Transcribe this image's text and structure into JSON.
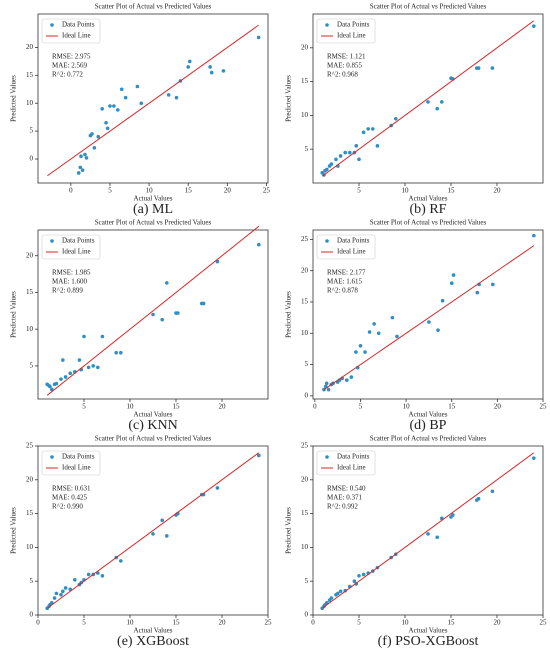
{
  "chart_data": [
    {
      "type": "scatter",
      "title": "Scatter Plot of Actual vs Predicted Values",
      "xlabel": "Actual Values",
      "ylabel": "Predicted Values",
      "caption": "(a) ML",
      "annotations": [
        "RMSE: 2.975",
        "MAE: 2.569",
        "R^2: 0.772"
      ],
      "xlim": [
        -4.2,
        25.2
      ],
      "xticks": [
        0,
        5,
        10,
        15,
        20,
        25
      ],
      "ylim": [
        -4.3,
        26
      ],
      "yticks": [
        0,
        5,
        10,
        15,
        20
      ],
      "series": [
        {
          "name": "Data Points",
          "color": "#2f8fc4",
          "x": [
            1,
            1.2,
            1.3,
            1.5,
            1.8,
            2,
            2.5,
            2.7,
            3,
            3.5,
            4,
            4.5,
            4.7,
            5,
            5.5,
            6,
            6.5,
            7,
            8.5,
            9,
            12.5,
            13.5,
            14,
            15,
            15.2,
            17.8,
            18,
            19.5,
            24
          ],
          "values": [
            -2.5,
            -1.5,
            0.5,
            -2,
            0.8,
            0.2,
            4.2,
            4.5,
            2,
            4,
            9,
            6.5,
            5.5,
            9.5,
            9.5,
            8.8,
            12.5,
            11,
            13,
            10,
            11.5,
            11,
            14,
            16.5,
            17.5,
            16.5,
            15.5,
            15.8,
            21.8
          ]
        },
        {
          "name": "Ideal Line",
          "color": "#d62728",
          "type": "line",
          "x": [
            -3,
            24
          ],
          "values": [
            -3,
            24
          ]
        }
      ]
    },
    {
      "type": "scatter",
      "title": "Scatter Plot of Actual vs Predicted Values",
      "xlabel": "Actual Values",
      "ylabel": "Predicted Values",
      "caption": "(b) RF",
      "annotations": [
        "RMSE: 1.121",
        "MAE: 0.855",
        "R^2: 0.968"
      ],
      "xlim": [
        0,
        25
      ],
      "xticks": [
        5,
        10,
        15,
        20
      ],
      "ylim": [
        0,
        25
      ],
      "yticks": [
        5,
        10,
        15,
        20
      ],
      "series": [
        {
          "name": "Data Points",
          "color": "#2f8fc4",
          "x": [
            1,
            1.2,
            1.3,
            1.5,
            1.8,
            2,
            2.5,
            2.7,
            3,
            3.5,
            4,
            4.5,
            4.7,
            5,
            5.5,
            6,
            6.5,
            7,
            8.5,
            9,
            12.5,
            13.5,
            14,
            15,
            15.2,
            17.8,
            18,
            19.5,
            24
          ],
          "values": [
            1.5,
            1.2,
            1.8,
            2,
            2.5,
            2.8,
            3.5,
            2.5,
            4,
            4.5,
            4.5,
            4.5,
            5.5,
            3.5,
            7.5,
            8,
            8,
            5.5,
            8.5,
            9.5,
            12,
            11,
            12,
            15.5,
            15.4,
            17,
            17,
            17,
            23.2
          ]
        },
        {
          "name": "Ideal Line",
          "color": "#d62728",
          "type": "line",
          "x": [
            1,
            24
          ],
          "values": [
            1,
            24
          ]
        }
      ]
    },
    {
      "type": "scatter",
      "title": "Scatter Plot of Actual vs Predicted Values",
      "xlabel": "Actual Values",
      "ylabel": "Predicted Values",
      "caption": "(c) KNN",
      "annotations": [
        "RMSE: 1.985",
        "MAE: 1.600",
        "R^2: 0.899"
      ],
      "xlim": [
        0,
        25
      ],
      "xticks": [
        5,
        10,
        15,
        20
      ],
      "ylim": [
        0.5,
        23.5
      ],
      "yticks": [
        5,
        10,
        15,
        20
      ],
      "series": [
        {
          "name": "Data Points",
          "color": "#2f8fc4",
          "x": [
            1,
            1.2,
            1.3,
            1.5,
            1.8,
            2,
            2.5,
            2.7,
            3,
            3.5,
            4,
            4.5,
            4.7,
            5,
            5.5,
            6,
            6.5,
            7,
            8.5,
            9,
            12.5,
            13.5,
            14,
            15,
            15.2,
            17.8,
            18,
            19.5,
            24
          ],
          "values": [
            2.5,
            2.3,
            2.2,
            1.8,
            2.5,
            2.6,
            3.2,
            5.8,
            3.5,
            4,
            4.2,
            5.8,
            4.5,
            9,
            4.8,
            5,
            4.8,
            9,
            6.8,
            6.8,
            12,
            11.3,
            16.3,
            12.2,
            12.2,
            13.5,
            13.5,
            19.2,
            21.5
          ]
        },
        {
          "name": "Ideal Line",
          "color": "#d62728",
          "type": "line",
          "x": [
            1,
            24
          ],
          "values": [
            1,
            24
          ]
        }
      ]
    },
    {
      "type": "scatter",
      "title": "Scatter Plot of Actual vs Predicted Values",
      "xlabel": "Actual Values",
      "ylabel": "Predicted Values",
      "caption": "(d) BP",
      "annotations": [
        "RMSE: 2.177",
        "MAE: 1.615",
        "R^2: 0.878"
      ],
      "xlim": [
        -0.2,
        25
      ],
      "xticks": [
        0,
        5,
        10,
        15,
        20,
        25
      ],
      "ylim": [
        -0.5,
        26.5
      ],
      "yticks": [
        0,
        5,
        10,
        15,
        20,
        25
      ],
      "series": [
        {
          "name": "Data Points",
          "color": "#2f8fc4",
          "x": [
            1,
            1.2,
            1.3,
            1.5,
            1.8,
            2,
            2.5,
            2.7,
            3,
            3.5,
            4,
            4.5,
            4.7,
            5,
            5.5,
            6,
            6.5,
            7,
            8.5,
            9,
            12.5,
            13.5,
            14,
            15,
            15.2,
            17.8,
            18,
            19.5,
            24
          ],
          "values": [
            1,
            1.5,
            2,
            1,
            1.8,
            2,
            2.2,
            2.5,
            2.8,
            2.5,
            3,
            7,
            4.5,
            8,
            7,
            10.2,
            11.5,
            10,
            12.5,
            9.5,
            11.8,
            10.5,
            15.2,
            18,
            19.3,
            16.5,
            17.8,
            17.8,
            25.6
          ]
        },
        {
          "name": "Ideal Line",
          "color": "#d62728",
          "type": "line",
          "x": [
            1,
            24
          ],
          "values": [
            1,
            24
          ]
        }
      ]
    },
    {
      "type": "scatter",
      "title": "Scatter Plot of Actual vs Predicted Values",
      "xlabel": "Actual Values",
      "ylabel": "Predicted Values",
      "caption": "(e) XGBoost",
      "annotations": [
        "RMSE: 0.631",
        "MAE: 0.425",
        "R^2: 0.990"
      ],
      "xlim": [
        0,
        25
      ],
      "xticks": [
        0,
        5,
        10,
        15,
        20,
        25
      ],
      "ylim": [
        0,
        25
      ],
      "yticks": [
        0,
        5,
        10,
        15,
        20,
        25
      ],
      "series": [
        {
          "name": "Data Points",
          "color": "#2f8fc4",
          "x": [
            1,
            1.2,
            1.3,
            1.5,
            1.8,
            2,
            2.5,
            2.7,
            3,
            3.5,
            4,
            4.5,
            4.7,
            5,
            5.5,
            6,
            6.5,
            7,
            8.5,
            9,
            12.5,
            13.5,
            14,
            15,
            15.2,
            17.8,
            18,
            19.5,
            24
          ],
          "values": [
            1,
            1.3,
            1.5,
            1.8,
            2.5,
            3.2,
            3,
            3.5,
            4,
            3.8,
            5.2,
            4.5,
            4.8,
            5.2,
            6,
            6,
            6.2,
            5.8,
            8.5,
            8,
            12,
            14,
            11.7,
            14.8,
            15,
            17.8,
            17.8,
            18.8,
            23.6
          ]
        },
        {
          "name": "Ideal Line",
          "color": "#d62728",
          "type": "line",
          "x": [
            1,
            24
          ],
          "values": [
            1,
            24
          ]
        }
      ]
    },
    {
      "type": "scatter",
      "title": "Scatter Plot of Actual vs Predicted Values",
      "xlabel": "Actual Values",
      "ylabel": "Predicted Values",
      "caption": "(f) PSO-XGBoost",
      "annotations": [
        "RMSE: 0.540",
        "MAE: 0.371",
        "R^2: 0.992"
      ],
      "xlim": [
        0,
        25
      ],
      "xticks": [
        0,
        5,
        10,
        15,
        20,
        25
      ],
      "ylim": [
        0,
        25
      ],
      "yticks": [
        0,
        5,
        10,
        15,
        20,
        25
      ],
      "series": [
        {
          "name": "Data Points",
          "color": "#2f8fc4",
          "x": [
            1,
            1.2,
            1.3,
            1.5,
            1.8,
            2,
            2.5,
            2.7,
            3,
            3.5,
            4,
            4.5,
            4.7,
            5,
            5.5,
            6,
            6.5,
            7,
            8.5,
            9,
            12.5,
            13.5,
            14,
            15,
            15.2,
            17.8,
            18,
            19.5,
            24
          ],
          "values": [
            1,
            1.3,
            1.5,
            1.8,
            2.2,
            2.5,
            3,
            3.2,
            3.5,
            3.6,
            4.2,
            5,
            4.6,
            5.8,
            6,
            6.2,
            6.5,
            7,
            8.5,
            9,
            12,
            11.5,
            14.3,
            14.5,
            14.8,
            17,
            17.2,
            18.3,
            23.2
          ]
        },
        {
          "name": "Ideal Line",
          "color": "#d62728",
          "type": "line",
          "x": [
            1,
            24
          ],
          "values": [
            1,
            24
          ]
        }
      ]
    }
  ]
}
